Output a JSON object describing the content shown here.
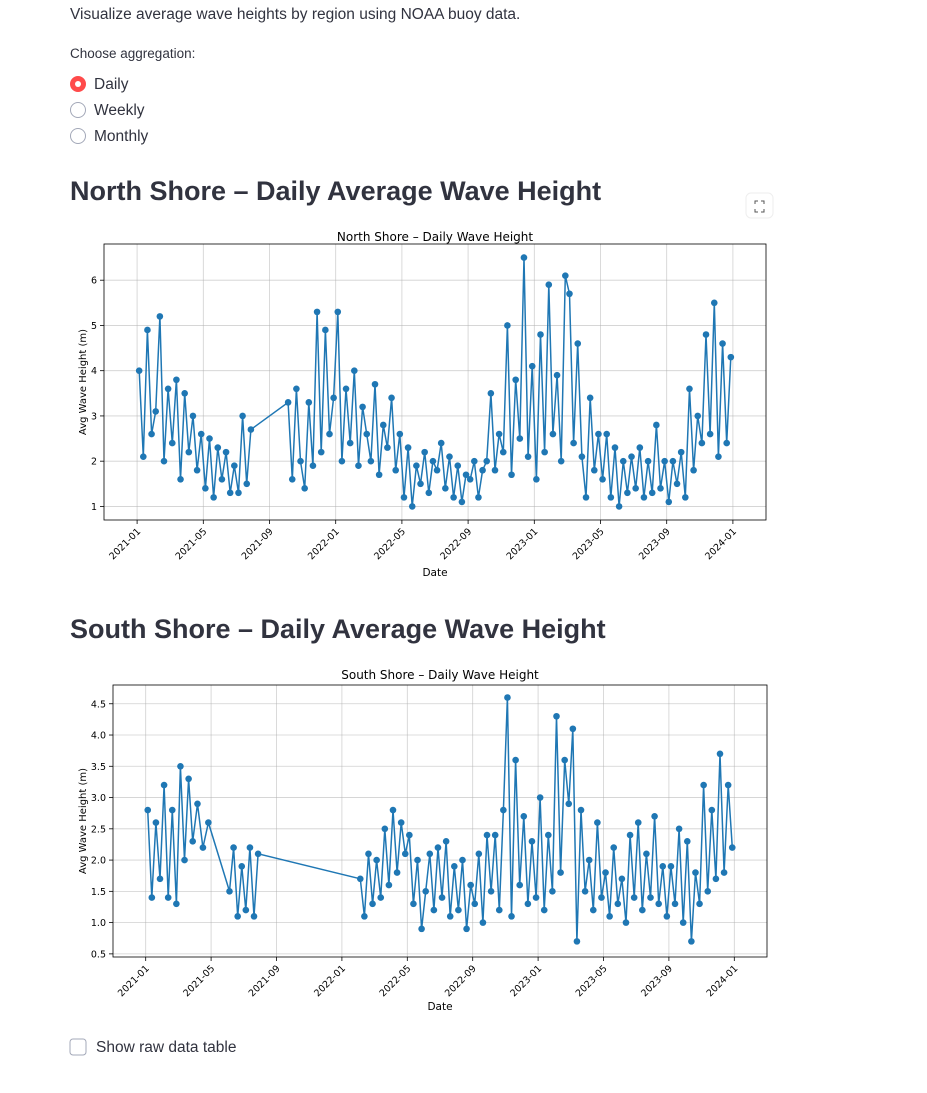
{
  "description": "Visualize average wave heights by region using NOAA buoy data.",
  "aggregation": {
    "label": "Choose aggregation:",
    "options": [
      "Daily",
      "Weekly",
      "Monthly"
    ],
    "selected": 0
  },
  "checkbox": {
    "label": "Show raw data table"
  },
  "chart_data": [
    {
      "type": "line",
      "heading": "North Shore – Daily Average Wave Height",
      "title": "North Shore – Daily Wave Height",
      "xlabel": "Date",
      "ylabel": "Avg Wave Height (m)",
      "color": "#1f77b4",
      "grid": true,
      "x": [
        "2021-01",
        "2021-01",
        "2021-01",
        "2021-01",
        "2021-02",
        "2021-02",
        "2021-02",
        "2021-02",
        "2021-03",
        "2021-03",
        "2021-03",
        "2021-03",
        "2021-04",
        "2021-04",
        "2021-04",
        "2021-04",
        "2021-05",
        "2021-05",
        "2021-05",
        "2021-05",
        "2021-06",
        "2021-06",
        "2021-06",
        "2021-06",
        "2021-07",
        "2021-07",
        "2021-07",
        "2021-07",
        "2021-10",
        "2021-10",
        "2021-10",
        "2021-10",
        "2021-11",
        "2021-11",
        "2021-11",
        "2021-11",
        "2021-12",
        "2021-12",
        "2021-12",
        "2021-12",
        "2022-01",
        "2022-01",
        "2022-01",
        "2022-01",
        "2022-02",
        "2022-02",
        "2022-02",
        "2022-02",
        "2022-03",
        "2022-03",
        "2022-03",
        "2022-03",
        "2022-04",
        "2022-04",
        "2022-04",
        "2022-04",
        "2022-05",
        "2022-05",
        "2022-05",
        "2022-05",
        "2022-06",
        "2022-06",
        "2022-06",
        "2022-06",
        "2022-07",
        "2022-07",
        "2022-07",
        "2022-07",
        "2022-08",
        "2022-08",
        "2022-08",
        "2022-08",
        "2022-09",
        "2022-09",
        "2022-09",
        "2022-09",
        "2022-10",
        "2022-10",
        "2022-10",
        "2022-10",
        "2022-11",
        "2022-11",
        "2022-11",
        "2022-11",
        "2022-12",
        "2022-12",
        "2022-12",
        "2022-12",
        "2023-01",
        "2023-01",
        "2023-01",
        "2023-01",
        "2023-02",
        "2023-02",
        "2023-02",
        "2023-02",
        "2023-03",
        "2023-03",
        "2023-03",
        "2023-03",
        "2023-04",
        "2023-04",
        "2023-04",
        "2023-04",
        "2023-05",
        "2023-05",
        "2023-05",
        "2023-05",
        "2023-06",
        "2023-06",
        "2023-06",
        "2023-06",
        "2023-07",
        "2023-07",
        "2023-07",
        "2023-07",
        "2023-08",
        "2023-08",
        "2023-08",
        "2023-08",
        "2023-09",
        "2023-09",
        "2023-09",
        "2023-09",
        "2023-10",
        "2023-10",
        "2023-10",
        "2023-10",
        "2023-11",
        "2023-11",
        "2023-11",
        "2023-11",
        "2023-12",
        "2023-12",
        "2023-12",
        "2023-12"
      ],
      "values": [
        4.0,
        2.1,
        4.9,
        2.6,
        3.1,
        5.2,
        2.0,
        3.6,
        2.4,
        3.8,
        1.6,
        3.5,
        2.2,
        3.0,
        1.8,
        2.6,
        1.4,
        2.5,
        1.2,
        2.3,
        1.6,
        2.2,
        1.3,
        1.9,
        1.3,
        3.0,
        1.5,
        2.7,
        3.3,
        1.6,
        3.6,
        2.0,
        1.4,
        3.3,
        1.9,
        5.3,
        2.2,
        4.9,
        2.6,
        3.4,
        5.3,
        2.0,
        3.6,
        2.4,
        4.0,
        1.9,
        3.2,
        2.6,
        2.0,
        3.7,
        1.7,
        2.8,
        2.3,
        3.4,
        1.8,
        2.6,
        1.2,
        2.3,
        1.0,
        1.9,
        1.5,
        2.2,
        1.3,
        2.0,
        1.8,
        2.4,
        1.4,
        2.1,
        1.2,
        1.9,
        1.1,
        1.7,
        1.6,
        2.0,
        1.2,
        1.8,
        2.0,
        3.5,
        1.8,
        2.6,
        2.2,
        5.0,
        1.7,
        3.8,
        2.5,
        6.5,
        2.1,
        4.1,
        1.6,
        4.8,
        2.2,
        5.9,
        2.6,
        3.9,
        2.0,
        6.1,
        5.7,
        2.4,
        4.6,
        2.1,
        1.2,
        3.4,
        1.8,
        2.6,
        1.6,
        2.6,
        1.2,
        2.3,
        1.0,
        2.0,
        1.3,
        2.1,
        1.4,
        2.3,
        1.2,
        2.0,
        1.3,
        2.8,
        1.4,
        2.0,
        1.1,
        2.0,
        1.5,
        2.2,
        1.2,
        3.6,
        1.8,
        3.0,
        2.4,
        4.8,
        2.6,
        5.5,
        2.1,
        4.6,
        2.4,
        4.3
      ],
      "xlim": [
        "2020-11",
        "2024-03"
      ],
      "xticks": [
        "2021-01",
        "2021-05",
        "2021-09",
        "2022-01",
        "2022-05",
        "2022-09",
        "2023-01",
        "2023-05",
        "2023-09",
        "2024-01"
      ],
      "ylim": [
        0.7,
        6.8
      ],
      "yticks": [
        1,
        2,
        3,
        4,
        5,
        6
      ]
    },
    {
      "type": "line",
      "heading": "South Shore – Daily Average Wave Height",
      "title": "South Shore – Daily Wave Height",
      "xlabel": "Date",
      "ylabel": "Avg Wave Height (m)",
      "color": "#1f77b4",
      "grid": true,
      "x": [
        "2021-01",
        "2021-01",
        "2021-01",
        "2021-01",
        "2021-02",
        "2021-02",
        "2021-02",
        "2021-02",
        "2021-03",
        "2021-03",
        "2021-03",
        "2021-03",
        "2021-04",
        "2021-04",
        "2021-04",
        "2021-06",
        "2021-06",
        "2021-06",
        "2021-06",
        "2021-07",
        "2021-07",
        "2021-07",
        "2021-07",
        "2022-02",
        "2022-02",
        "2022-02",
        "2022-02",
        "2022-03",
        "2022-03",
        "2022-03",
        "2022-03",
        "2022-04",
        "2022-04",
        "2022-04",
        "2022-04",
        "2022-05",
        "2022-05",
        "2022-05",
        "2022-05",
        "2022-06",
        "2022-06",
        "2022-06",
        "2022-06",
        "2022-07",
        "2022-07",
        "2022-07",
        "2022-07",
        "2022-08",
        "2022-08",
        "2022-08",
        "2022-08",
        "2022-09",
        "2022-09",
        "2022-09",
        "2022-09",
        "2022-10",
        "2022-10",
        "2022-10",
        "2022-10",
        "2022-11",
        "2022-11",
        "2022-11",
        "2022-11",
        "2022-12",
        "2022-12",
        "2022-12",
        "2022-12",
        "2023-01",
        "2023-01",
        "2023-01",
        "2023-01",
        "2023-02",
        "2023-02",
        "2023-02",
        "2023-02",
        "2023-03",
        "2023-03",
        "2023-03",
        "2023-03",
        "2023-04",
        "2023-04",
        "2023-04",
        "2023-04",
        "2023-05",
        "2023-05",
        "2023-05",
        "2023-05",
        "2023-06",
        "2023-06",
        "2023-06",
        "2023-06",
        "2023-07",
        "2023-07",
        "2023-07",
        "2023-07",
        "2023-08",
        "2023-08",
        "2023-08",
        "2023-08",
        "2023-09",
        "2023-09",
        "2023-09",
        "2023-09",
        "2023-10",
        "2023-10",
        "2023-10",
        "2023-10",
        "2023-11",
        "2023-11",
        "2023-11",
        "2023-11",
        "2023-12",
        "2023-12",
        "2023-12",
        "2023-12"
      ],
      "values": [
        2.8,
        1.4,
        2.6,
        1.7,
        3.2,
        1.4,
        2.8,
        1.3,
        3.5,
        2.0,
        3.3,
        2.3,
        2.9,
        2.2,
        2.6,
        1.5,
        2.2,
        1.1,
        1.9,
        1.2,
        2.2,
        1.1,
        2.1,
        1.7,
        1.1,
        2.1,
        1.3,
        2.0,
        1.4,
        2.5,
        1.6,
        2.8,
        1.8,
        2.6,
        2.1,
        2.4,
        1.3,
        2.0,
        0.9,
        1.5,
        2.1,
        1.2,
        2.2,
        1.4,
        2.3,
        1.1,
        1.9,
        1.2,
        2.0,
        0.9,
        1.6,
        1.3,
        2.1,
        1.0,
        2.4,
        1.5,
        2.4,
        1.2,
        2.8,
        4.6,
        1.1,
        3.6,
        1.6,
        2.7,
        1.3,
        2.3,
        1.4,
        3.0,
        1.2,
        2.4,
        1.5,
        4.3,
        1.8,
        3.6,
        2.9,
        4.1,
        0.7,
        2.8,
        1.5,
        2.0,
        1.2,
        2.6,
        1.4,
        1.8,
        1.1,
        2.2,
        1.3,
        1.7,
        1.0,
        2.4,
        1.4,
        2.6,
        1.2,
        2.1,
        1.4,
        2.7,
        1.3,
        1.9,
        1.1,
        1.9,
        1.3,
        2.5,
        1.0,
        2.3,
        0.7,
        1.8,
        1.3,
        3.2,
        1.5,
        2.8,
        1.7,
        3.7,
        1.8,
        3.2,
        2.2
      ],
      "xlim": [
        "2020-11",
        "2024-03"
      ],
      "xticks": [
        "2021-01",
        "2021-05",
        "2021-09",
        "2022-01",
        "2022-05",
        "2022-09",
        "2023-01",
        "2023-05",
        "2023-09",
        "2024-01"
      ],
      "ylim": [
        0.45,
        4.8
      ],
      "yticks": [
        0.5,
        {
          "value": 1,
          "label": "1.0"
        },
        1.5,
        {
          "value": 2,
          "label": "2.0"
        },
        2.5,
        {
          "value": 3,
          "label": "3.0"
        },
        3.5,
        {
          "value": 4,
          "label": "4.0"
        },
        4.5
      ]
    }
  ]
}
